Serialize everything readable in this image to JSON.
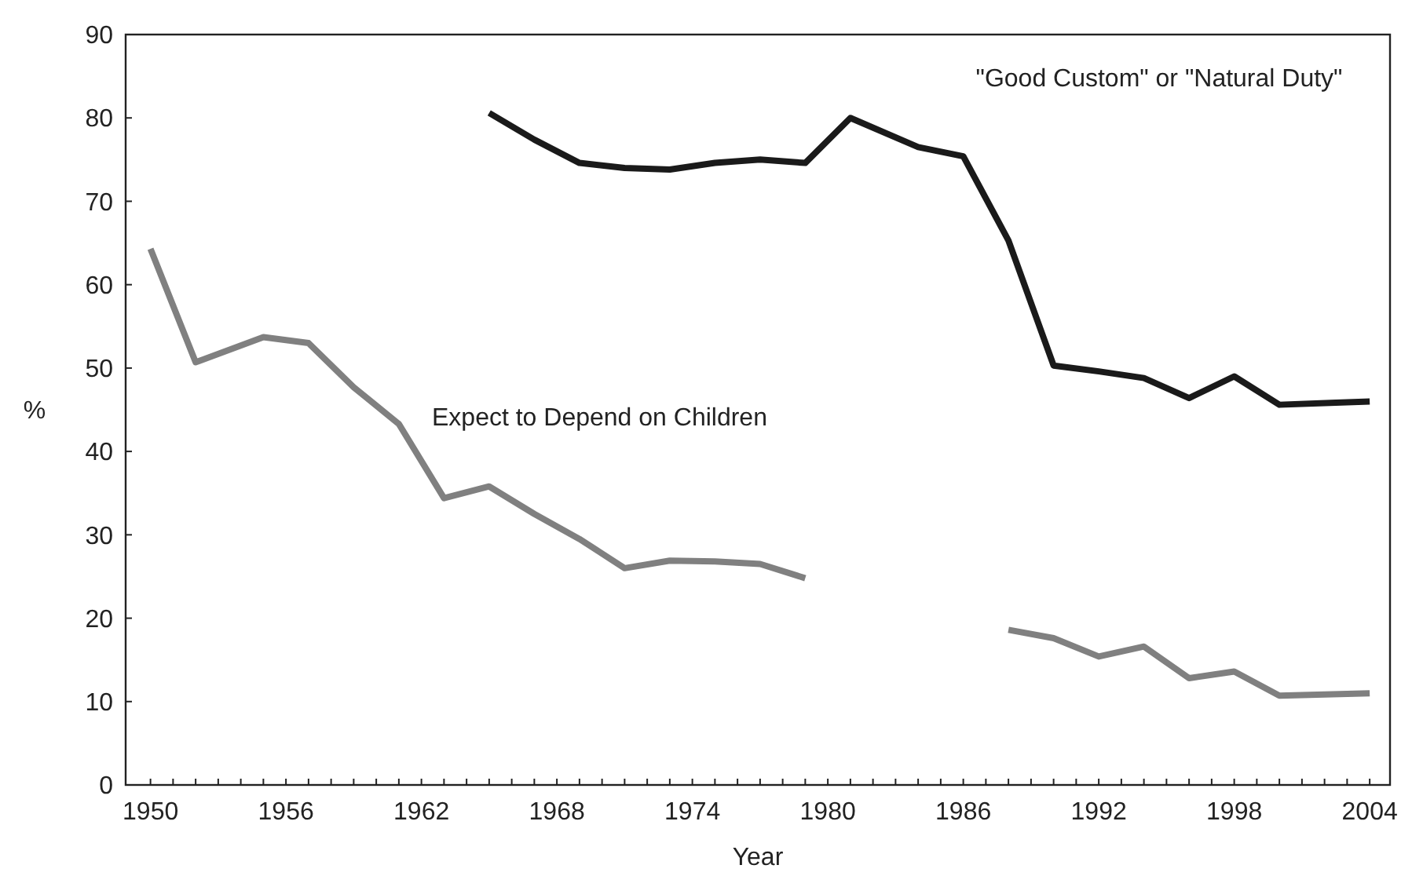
{
  "chart_data": {
    "type": "line",
    "xlabel": "Year",
    "ylabel": "%",
    "xlim": [
      1948.9,
      2004.9
    ],
    "ylim": [
      0,
      90
    ],
    "xticks": [
      1950,
      {
        "value": 1951,
        "label": null
      },
      {
        "value": 1952,
        "label": null
      },
      {
        "value": 1953,
        "label": null
      },
      {
        "value": 1954,
        "label": null
      },
      {
        "value": 1955,
        "label": null
      },
      1956,
      {
        "value": 1957,
        "label": null
      },
      {
        "value": 1958,
        "label": null
      },
      {
        "value": 1959,
        "label": null
      },
      {
        "value": 1960,
        "label": null
      },
      {
        "value": 1961,
        "label": null
      },
      1962,
      {
        "value": 1963,
        "label": null
      },
      {
        "value": 1964,
        "label": null
      },
      {
        "value": 1965,
        "label": null
      },
      {
        "value": 1966,
        "label": null
      },
      {
        "value": 1967,
        "label": null
      },
      1968,
      {
        "value": 1969,
        "label": null
      },
      {
        "value": 1970,
        "label": null
      },
      {
        "value": 1971,
        "label": null
      },
      {
        "value": 1972,
        "label": null
      },
      {
        "value": 1973,
        "label": null
      },
      1974,
      {
        "value": 1975,
        "label": null
      },
      {
        "value": 1976,
        "label": null
      },
      {
        "value": 1977,
        "label": null
      },
      {
        "value": 1978,
        "label": null
      },
      {
        "value": 1979,
        "label": null
      },
      1980,
      {
        "value": 1981,
        "label": null
      },
      {
        "value": 1982,
        "label": null
      },
      {
        "value": 1983,
        "label": null
      },
      {
        "value": 1984,
        "label": null
      },
      {
        "value": 1985,
        "label": null
      },
      1986,
      {
        "value": 1987,
        "label": null
      },
      {
        "value": 1988,
        "label": null
      },
      {
        "value": 1989,
        "label": null
      },
      {
        "value": 1990,
        "label": null
      },
      {
        "value": 1991,
        "label": null
      },
      1992,
      {
        "value": 1993,
        "label": null
      },
      {
        "value": 1994,
        "label": null
      },
      {
        "value": 1995,
        "label": null
      },
      {
        "value": 1996,
        "label": null
      },
      {
        "value": 1997,
        "label": null
      },
      1998,
      {
        "value": 1999,
        "label": null
      },
      {
        "value": 2000,
        "label": null
      },
      {
        "value": 2001,
        "label": null
      },
      {
        "value": 2002,
        "label": null
      },
      {
        "value": 2003,
        "label": null
      },
      2004
    ],
    "yticks": [
      0,
      10,
      20,
      30,
      40,
      50,
      60,
      70,
      80,
      90
    ],
    "grid": false,
    "legend": false,
    "line_style": "solid",
    "marker": "none",
    "series": [
      {
        "name": "\"Good Custom\" or \"Natural Duty\"",
        "color": "#1a1a1a",
        "x": [
          1965,
          1967,
          1969,
          1971,
          1973,
          1975,
          1977,
          1979,
          1981,
          1984,
          1986,
          1988,
          1990,
          1992,
          1994,
          1996,
          1998,
          2000,
          2004
        ],
        "values": [
          80.6,
          77.4,
          74.6,
          74.0,
          73.8,
          74.6,
          75.0,
          74.6,
          80.0,
          76.5,
          75.4,
          65.3,
          50.3,
          49.6,
          48.8,
          46.4,
          49.0,
          45.6,
          46.0
        ]
      },
      {
        "name": "Expect to Depend on Children",
        "color": "#808080",
        "x": [
          1950,
          1952,
          1955,
          1957,
          1959,
          1961,
          1963,
          1965,
          1967,
          1969,
          1971,
          1973,
          1975,
          1977,
          1979,
          1984,
          1988,
          1990,
          1992,
          1994,
          1996,
          1998,
          2000,
          2004
        ],
        "values": [
          64.3,
          50.7,
          53.7,
          53.0,
          47.7,
          43.3,
          34.4,
          35.8,
          32.5,
          29.5,
          26.0,
          26.9,
          26.8,
          26.5,
          24.8,
          null,
          18.6,
          17.6,
          15.4,
          16.6,
          12.8,
          13.6,
          10.7,
          11.0
        ]
      }
    ]
  }
}
